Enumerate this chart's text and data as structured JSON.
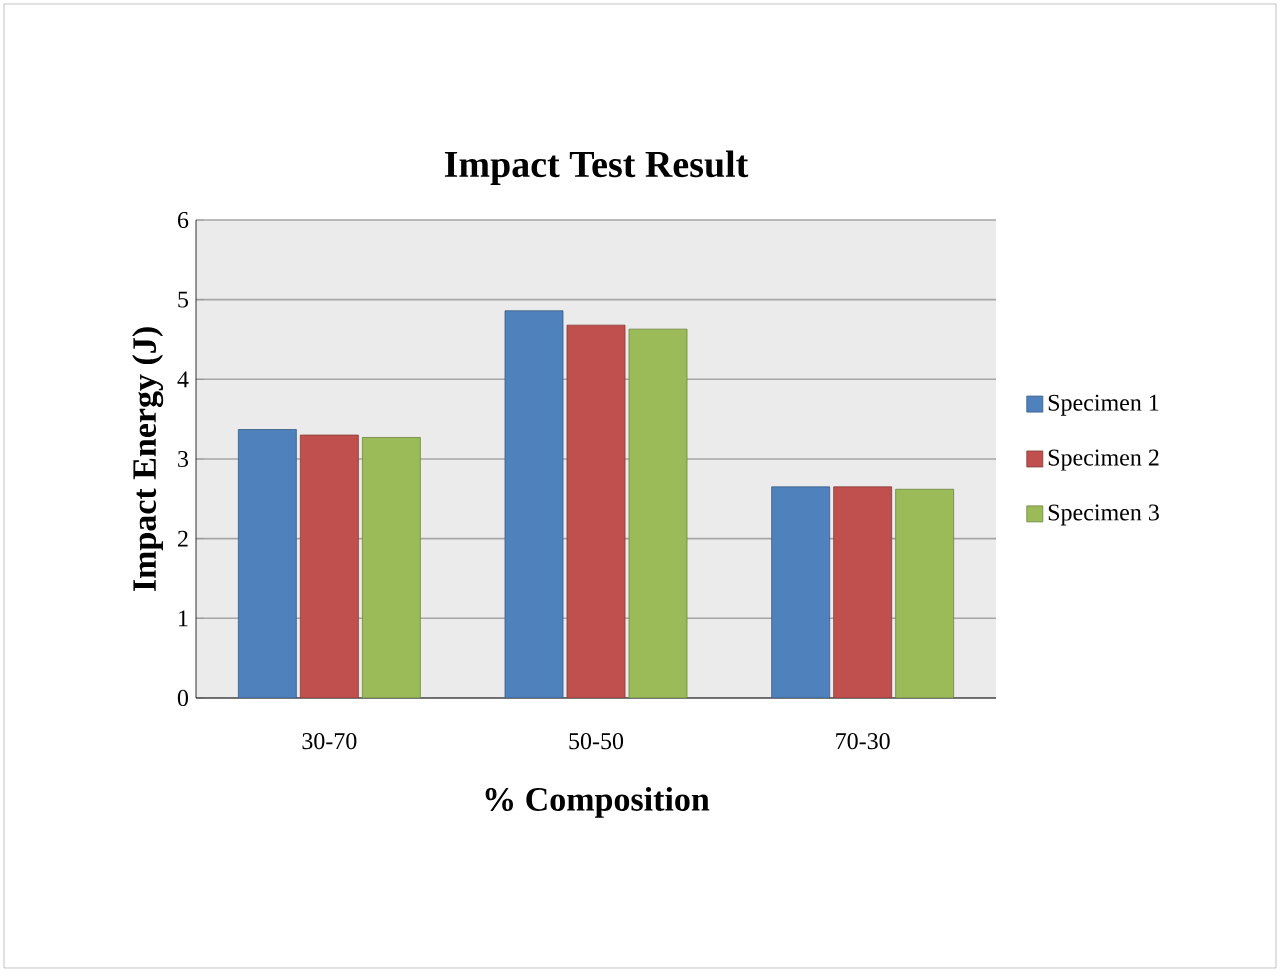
{
  "chart_data": {
    "type": "bar",
    "title": "Impact Test Result",
    "xlabel": "% Composition",
    "ylabel": "Impact Energy (J)",
    "categories": [
      "30-70",
      "50-50",
      "70-30"
    ],
    "series": [
      {
        "name": "Specimen 1",
        "color": "#4f81bd",
        "values": [
          3.37,
          4.86,
          2.65
        ]
      },
      {
        "name": "Specimen 2",
        "color": "#c0504d",
        "values": [
          3.3,
          4.68,
          2.65
        ]
      },
      {
        "name": "Specimen 3",
        "color": "#9bbb59",
        "values": [
          3.27,
          4.63,
          2.62
        ]
      }
    ],
    "ylim": [
      0,
      6
    ],
    "yticks": [
      0,
      1,
      2,
      3,
      4,
      5,
      6
    ],
    "grid": "y",
    "legend": "right"
  }
}
